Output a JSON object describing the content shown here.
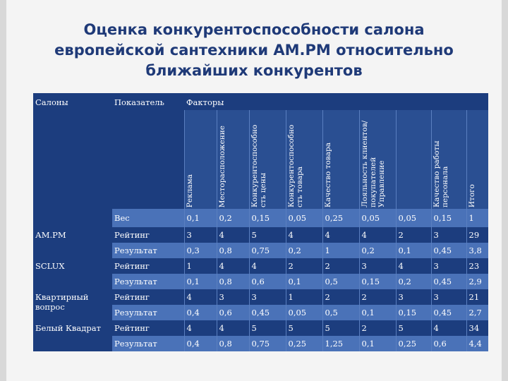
{
  "title": {
    "line1": "Оценка конкурентоспособности салона",
    "line2": "европейской сантехники АМ.РМ относительно",
    "line3": "ближайших конкурентов"
  },
  "header": {
    "col_salons": "Салоны",
    "col_indicator": "Показатель",
    "col_factors": "Факторы"
  },
  "factors": [
    "Реклама",
    "Месторасположение",
    "Конкурентоспособно сть цены",
    "Конкурентоспособно сть товара",
    "Качество товара",
    "Лояльность клиентов/ покупателей Управление",
    "",
    "Качество работы персонала",
    "Итого"
  ],
  "weight_row": {
    "label": "Вес",
    "values": [
      "0,1",
      "0,2",
      "0,15",
      "0,05",
      "0,25",
      "0,05",
      "0,05",
      "0,15",
      "1"
    ]
  },
  "salons": [
    {
      "name": "АМ.РМ",
      "rows": [
        {
          "label": "Рейтинг",
          "values": [
            "3",
            "4",
            "5",
            "4",
            "4",
            "4",
            "2",
            "3",
            "29"
          ]
        },
        {
          "label": "Результат",
          "values": [
            "0,3",
            "0,8",
            "0,75",
            "0,2",
            "1",
            "0,2",
            "0,1",
            "0,45",
            "3,8"
          ]
        }
      ]
    },
    {
      "name": "SCLUX",
      "rows": [
        {
          "label": "Рейтинг",
          "values": [
            "1",
            "4",
            "4",
            "2",
            "2",
            "3",
            "4",
            "3",
            "23"
          ]
        },
        {
          "label": "Результат",
          "values": [
            "0,1",
            "0,8",
            "0,6",
            "0,1",
            "0,5",
            "0,15",
            "0,2",
            "0,45",
            "2,9"
          ]
        }
      ]
    },
    {
      "name": "Квартирный вопрос",
      "rows": [
        {
          "label": "Рейтинг",
          "values": [
            "4",
            "3",
            "3",
            "1",
            "2",
            "2",
            "3",
            "3",
            "21"
          ]
        },
        {
          "label": "Результат",
          "values": [
            "0,4",
            "0,6",
            "0,45",
            "0,05",
            "0,5",
            "0,1",
            "0,15",
            "0,45",
            "2,7"
          ]
        }
      ]
    },
    {
      "name": "Белый Квадрат",
      "rows": [
        {
          "label": "Рейтинг",
          "values": [
            "4",
            "4",
            "5",
            "5",
            "5",
            "2",
            "5",
            "4",
            "34"
          ]
        },
        {
          "label": "Результат",
          "values": [
            "0,4",
            "0,8",
            "0,75",
            "0,25",
            "1,25",
            "0,1",
            "0,25",
            "0,6",
            "4,4"
          ]
        }
      ]
    }
  ]
}
